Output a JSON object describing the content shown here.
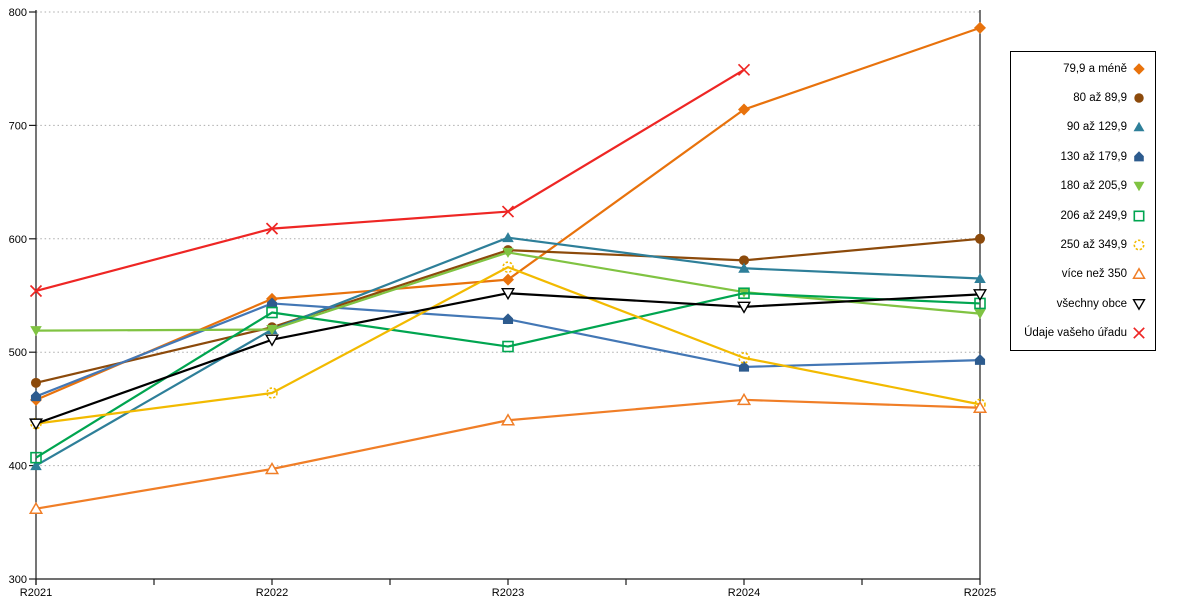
{
  "chart_data": {
    "type": "line",
    "title": "",
    "xlabel": "",
    "ylabel": "",
    "categories": [
      "R2021",
      "R2022",
      "R2023",
      "R2024",
      "R2025"
    ],
    "y_ticks": [
      300,
      400,
      500,
      600,
      700,
      800
    ],
    "ylim": [
      300,
      800
    ],
    "grid": "horizontal dotted gridlines at 400-800",
    "legend_position": "right, markers to the right of labels",
    "series": [
      {
        "name": "79,9 a méně",
        "marker": "diamond",
        "color": "#E8720C",
        "values": [
          458,
          547,
          564,
          714,
          786
        ]
      },
      {
        "name": "80 až 89,9",
        "marker": "circle",
        "color": "#8C4A0B",
        "values": [
          473,
          522,
          590,
          581,
          600
        ]
      },
      {
        "name": "90 až 129,9",
        "marker": "triangle-up",
        "color": "#2E7F99",
        "values": [
          400,
          520,
          601,
          574,
          565
        ]
      },
      {
        "name": "130 až 179,9",
        "marker": "pentagon",
        "color": "#2D5B8E",
        "line_color": "#4377B5",
        "values": [
          461,
          543,
          529,
          487,
          493
        ]
      },
      {
        "name": "180 až 205,9",
        "marker": "triangle-down",
        "color": "#80C342",
        "values": [
          519,
          520,
          588,
          553,
          534
        ]
      },
      {
        "name": "206 až 249,9",
        "marker": "square-open",
        "color": "#00A550",
        "values": [
          407,
          535,
          505,
          552,
          543
        ]
      },
      {
        "name": "250 až 349,9",
        "marker": "circle-open",
        "color": "#F2BA00",
        "values": [
          437,
          464,
          575,
          495,
          454
        ]
      },
      {
        "name": "více než 350",
        "marker": "triangle-open",
        "color": "#F07E27",
        "values": [
          362,
          397,
          440,
          458,
          451
        ]
      },
      {
        "name": "všechny obce",
        "marker": "triangle-down-open",
        "color": "#000000",
        "values": [
          437,
          511,
          552,
          540,
          551
        ]
      },
      {
        "name": "Údaje vašeho úřadu",
        "marker": "x",
        "color": "#EE2624",
        "values": [
          554,
          609,
          624,
          749,
          null
        ]
      }
    ]
  }
}
